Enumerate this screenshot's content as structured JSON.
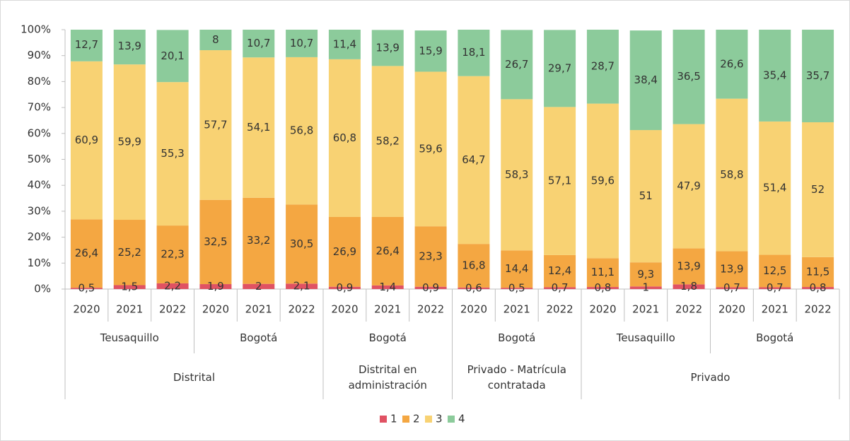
{
  "chart_data": {
    "type": "bar",
    "stacked": true,
    "ylim": [
      0,
      100
    ],
    "yticks": [
      {
        "value": 0,
        "label": "0%"
      },
      {
        "value": 10,
        "label": "10%"
      },
      {
        "value": 20,
        "label": "20%"
      },
      {
        "value": 30,
        "label": "30%"
      },
      {
        "value": 40,
        "label": "40%"
      },
      {
        "value": 50,
        "label": "50%"
      },
      {
        "value": 60,
        "label": "60%"
      },
      {
        "value": 70,
        "label": "70%"
      },
      {
        "value": 80,
        "label": "80%"
      },
      {
        "value": 90,
        "label": "90%"
      },
      {
        "value": 100,
        "label": "100%"
      }
    ],
    "category_groups": [
      {
        "label": "Distrital",
        "groups": [
          {
            "label": "Teusaquillo",
            "categories": [
              "2020",
              "2021",
              "2022"
            ]
          },
          {
            "label": "Bogotá",
            "categories": [
              "2020",
              "2021",
              "2022"
            ]
          }
        ]
      },
      {
        "label": "Distrital en administración",
        "groups": [
          {
            "label": "Bogotá",
            "categories": [
              "2020",
              "2021",
              "2022"
            ]
          }
        ]
      },
      {
        "label": "Privado - Matrícula contratada",
        "groups": [
          {
            "label": "Bogotá",
            "categories": [
              "2020",
              "2021",
              "2022"
            ]
          }
        ]
      },
      {
        "label": "Privado",
        "groups": [
          {
            "label": "Teusaquillo",
            "categories": [
              "2020",
              "2021",
              "2022"
            ]
          },
          {
            "label": "Bogotá",
            "categories": [
              "2020",
              "2021",
              "2022"
            ]
          }
        ]
      }
    ],
    "legend": "bottom",
    "series": [
      {
        "name": "1",
        "color": "#e05263",
        "values": [
          0.5,
          1.5,
          2.2,
          1.9,
          2,
          2.1,
          0.9,
          1.4,
          0.9,
          0.6,
          0.5,
          0.7,
          0.8,
          1,
          1.8,
          0.7,
          0.7,
          0.8
        ],
        "value_labels": [
          "0,5",
          "1,5",
          "2,2",
          "1,9",
          "2",
          "2,1",
          "0,9",
          "1,4",
          "0,9",
          "0,6",
          "0,5",
          "0,7",
          "0,8",
          "1",
          "1,8",
          "0,7",
          "0,7",
          "0,8"
        ]
      },
      {
        "name": "2",
        "color": "#f4a742",
        "values": [
          26.4,
          25.2,
          22.3,
          32.5,
          33.2,
          30.5,
          26.9,
          26.4,
          23.3,
          16.8,
          14.4,
          12.4,
          11.1,
          9.3,
          13.9,
          13.9,
          12.5,
          11.5
        ],
        "value_labels": [
          "26,4",
          "25,2",
          "22,3",
          "32,5",
          "33,2",
          "30,5",
          "26,9",
          "26,4",
          "23,3",
          "16,8",
          "14,4",
          "12,4",
          "11,1",
          "9,3",
          "13,9",
          "13,9",
          "12,5",
          "11,5"
        ]
      },
      {
        "name": "3",
        "color": "#f8d273",
        "values": [
          60.9,
          59.9,
          55.3,
          57.7,
          54.1,
          56.8,
          60.8,
          58.2,
          59.6,
          64.7,
          58.3,
          57.1,
          59.6,
          51,
          47.9,
          58.8,
          51.4,
          52
        ],
        "value_labels": [
          "60,9",
          "59,9",
          "55,3",
          "57,7",
          "54,1",
          "56,8",
          "60,8",
          "58,2",
          "59,6",
          "64,7",
          "58,3",
          "57,1",
          "59,6",
          "51",
          "47,9",
          "58,8",
          "51,4",
          "52"
        ]
      },
      {
        "name": "4",
        "color": "#8ccb9b",
        "values": [
          12.7,
          13.9,
          20.1,
          8,
          10.7,
          10.7,
          11.4,
          13.9,
          15.9,
          18.1,
          26.7,
          29.7,
          28.7,
          38.4,
          36.5,
          26.6,
          35.4,
          35.7
        ],
        "value_labels": [
          "12,7",
          "13,9",
          "20,1",
          "8",
          "10,7",
          "10,7",
          "11,4",
          "13,9",
          "15,9",
          "18,1",
          "26,7",
          "29,7",
          "28,7",
          "38,4",
          "36,5",
          "26,6",
          "35,4",
          "35,7"
        ]
      }
    ]
  }
}
